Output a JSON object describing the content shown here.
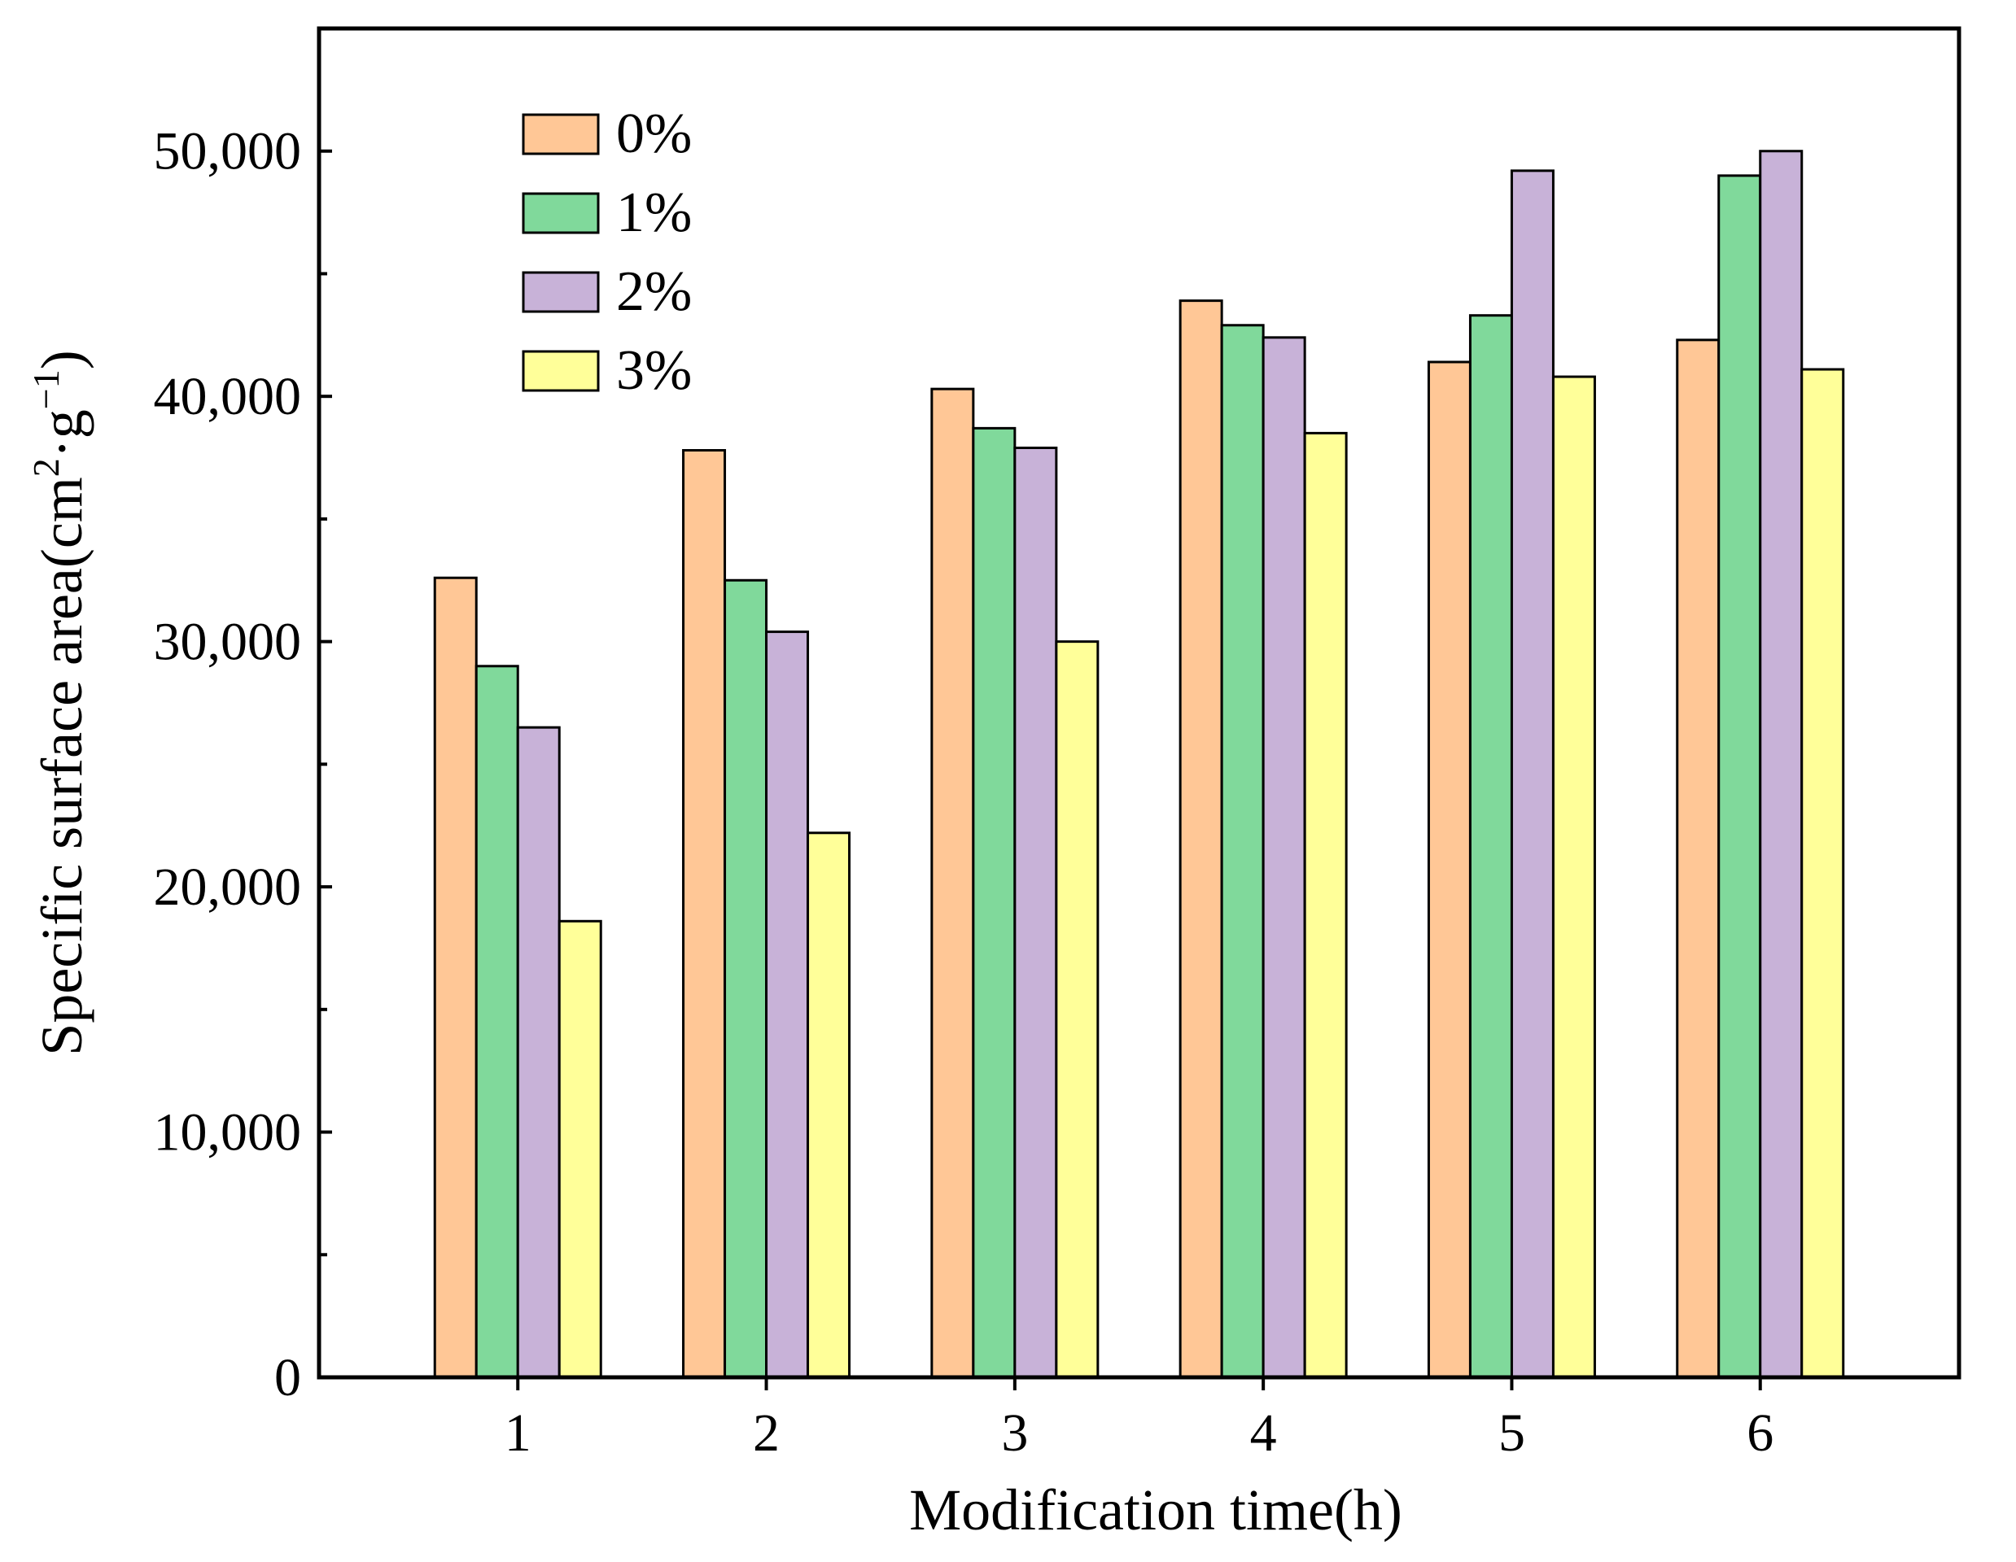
{
  "chart_data": {
    "type": "bar",
    "title": "",
    "xlabel": "Modification time(h)",
    "ylabel": {
      "prefix": "Specific surface area(cm",
      "sup1": "2",
      "middle": "·g",
      "sup2": "−1",
      "suffix": ")"
    },
    "categories": [
      "1",
      "2",
      "3",
      "4",
      "5",
      "6"
    ],
    "ylim": [
      0,
      55000
    ],
    "yticks": [
      0,
      10000,
      20000,
      30000,
      40000,
      50000
    ],
    "ytick_labels": [
      "0",
      "10,000",
      "20,000",
      "30,000",
      "40,000",
      "50,000"
    ],
    "legend_position": "top-left",
    "series": [
      {
        "name": "0%",
        "color": "#FFC796",
        "values": [
          32600,
          37800,
          40300,
          43900,
          41400,
          42300
        ]
      },
      {
        "name": "1%",
        "color": "#80D99B",
        "values": [
          29000,
          32500,
          38700,
          42900,
          43300,
          49000
        ]
      },
      {
        "name": "2%",
        "color": "#C8B2D8",
        "values": [
          26500,
          30400,
          37900,
          42400,
          49200,
          50000
        ]
      },
      {
        "name": "3%",
        "color": "#FFFF99",
        "values": [
          18600,
          22200,
          30000,
          38500,
          40800,
          41100
        ]
      }
    ]
  }
}
